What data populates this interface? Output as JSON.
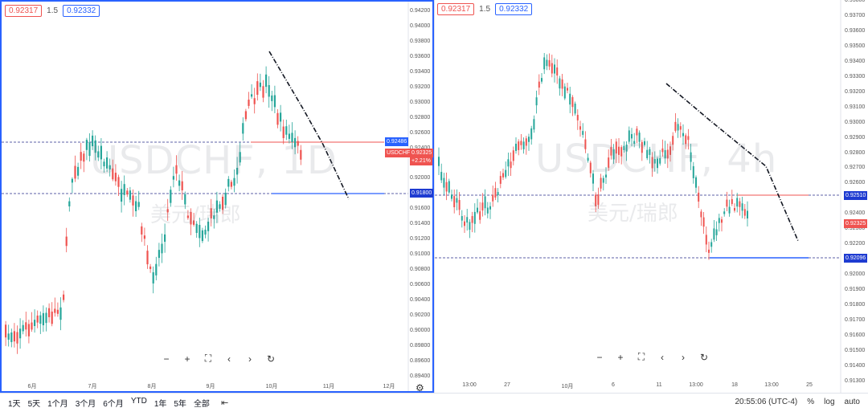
{
  "left": {
    "bid": "0.92317",
    "spread": "1.5",
    "ask": "0.92332",
    "watermark_symbol": "USDCHF, 1D",
    "watermark_name": "美元/瑞郎",
    "y_ticks": [
      "0.94200",
      "0.94000",
      "0.93800",
      "0.93600",
      "0.93400",
      "0.93200",
      "0.93000",
      "0.92800",
      "0.92600",
      "0.92400",
      "0.92200",
      "0.92000",
      "0.91800",
      "0.91600",
      "0.91400",
      "0.91200",
      "0.91000",
      "0.90800",
      "0.90600",
      "0.90400",
      "0.90200",
      "0.90000",
      "0.89800",
      "0.89600",
      "0.89400"
    ],
    "x_ticks": [
      "6月",
      "7月",
      "8月",
      "9月",
      "10月",
      "11月",
      "12月"
    ],
    "price_labels": {
      "red_line": "0.92486",
      "symbol": "USDCHF",
      "current": "0.92325",
      "change": "+2.21%",
      "blue_line": "0.91800"
    },
    "colors": {
      "up": "#26a69a",
      "down": "#ef5350",
      "red_line": "#ef5350",
      "blue_line": "#2962ff"
    }
  },
  "right": {
    "bid": "0.92317",
    "spread": "1.5",
    "ask": "0.92332",
    "watermark_symbol": "USDCHF, 4h",
    "watermark_name": "美元/瑞郎",
    "y_ticks": [
      "0.93800",
      "0.93700",
      "0.93600",
      "0.93500",
      "0.93400",
      "0.93300",
      "0.93200",
      "0.93100",
      "0.93000",
      "0.92900",
      "0.92800",
      "0.92700",
      "0.92600",
      "0.92500",
      "0.92400",
      "0.92300",
      "0.92200",
      "0.92100",
      "0.92000",
      "0.91900",
      "0.91800",
      "0.91700",
      "0.91600",
      "0.91500",
      "0.91400",
      "0.91300"
    ],
    "x_ticks": [
      "13:00",
      "27",
      "10月",
      "6",
      "11",
      "13:00",
      "18",
      "13:00",
      "25"
    ],
    "price_labels": {
      "red_line": "0.92510",
      "current": "0.92325",
      "blue_line": "0.92096"
    }
  },
  "bottombar": {
    "ranges": [
      "1天",
      "5天",
      "1个月",
      "3个月",
      "6个月",
      "YTD",
      "1年",
      "5年",
      "全部"
    ],
    "time": "20:55:06 (UTC-4)",
    "percent": "%",
    "log": "log",
    "auto": "auto"
  }
}
